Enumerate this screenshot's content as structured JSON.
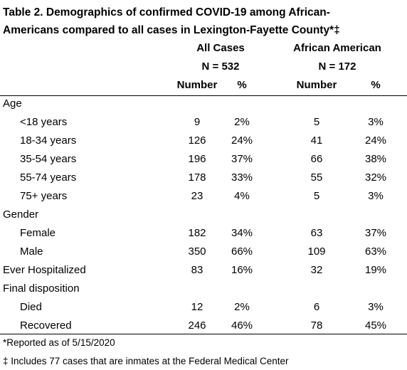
{
  "title": [
    "Table 2. Demographics of confirmed COVID-19 among African-",
    "Americans compared to all cases in Lexington-Fayette County*‡"
  ],
  "header": {
    "groups": [
      {
        "name": "All Cases",
        "n": "N = 532"
      },
      {
        "name": "African American",
        "n": "N = 172"
      }
    ],
    "columns": [
      "Number",
      "%",
      "Number",
      "%"
    ]
  },
  "sections": [
    {
      "label": "Age",
      "rows": [
        {
          "label": "<18 years",
          "values": [
            "9",
            "2%",
            "5",
            "3%"
          ]
        },
        {
          "label": "18-34 years",
          "values": [
            "126",
            "24%",
            "41",
            "24%"
          ]
        },
        {
          "label": "35-54 years",
          "values": [
            "196",
            "37%",
            "66",
            "38%"
          ]
        },
        {
          "label": "55-74 years",
          "values": [
            "178",
            "33%",
            "55",
            "32%"
          ]
        },
        {
          "label": "75+ years",
          "values": [
            "23",
            "4%",
            "5",
            "3%"
          ]
        }
      ]
    },
    {
      "label": "Gender",
      "rows": [
        {
          "label": "Female",
          "values": [
            "182",
            "34%",
            "63",
            "37%"
          ]
        },
        {
          "label": "Male",
          "values": [
            "350",
            "66%",
            "109",
            "63%"
          ]
        }
      ]
    },
    {
      "label": "Ever Hospitalized",
      "values": [
        "83",
        "16%",
        "32",
        "19%"
      ]
    },
    {
      "label": "Final disposition",
      "rows": [
        {
          "label": "Died",
          "values": [
            "12",
            "2%",
            "6",
            "3%"
          ]
        },
        {
          "label": "Recovered",
          "values": [
            "246",
            "46%",
            "78",
            "45%"
          ]
        }
      ]
    }
  ],
  "footnotes": [
    "*Reported as of 5/15/2020",
    "‡ Includes 77 cases that are inmates at the Federal Medical Center"
  ]
}
